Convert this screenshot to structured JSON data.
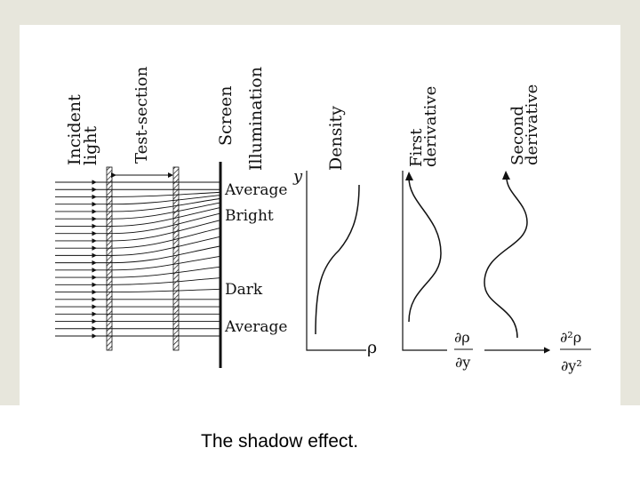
{
  "caption": "The shadow effect.",
  "diagram": {
    "headers": {
      "incident_light_line1": "Incident",
      "incident_light_line2": "light",
      "test_section": "Test-section",
      "screen": "Screen",
      "illumination": "Illumination",
      "density": "Density",
      "first_derivative_line1": "First",
      "first_derivative_line2": "derivative",
      "second_derivative_line1": "Second",
      "second_derivative_line2": "derivative"
    },
    "screen_labels": {
      "average_top": "Average",
      "bright": "Bright",
      "dark": "Dark",
      "average_bottom": "Average"
    },
    "axis_symbols": {
      "y": "y",
      "rho": "ρ",
      "drho_num": "∂ρ",
      "drho_den": "∂y",
      "d2rho_num": "∂²ρ",
      "d2rho_den": "∂y²"
    }
  },
  "colors": {
    "ink": "#111111",
    "background": "#e7e6dc",
    "panel": "#ffffff"
  }
}
